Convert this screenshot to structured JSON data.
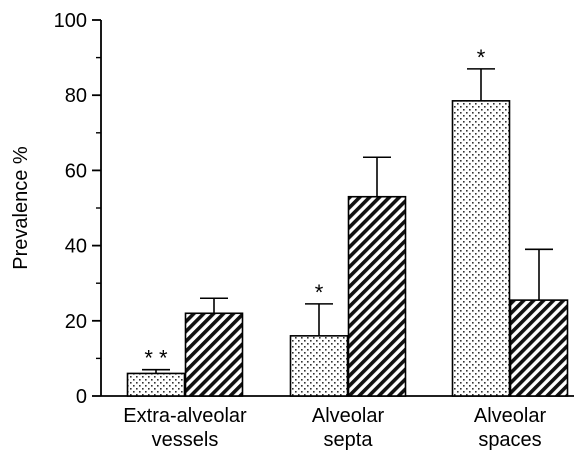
{
  "chart_data": {
    "type": "bar",
    "ylabel": "Prevalence %",
    "ylim": [
      0,
      100
    ],
    "yticks": [
      "0",
      "20",
      "40",
      "60",
      "80",
      "100"
    ],
    "categories": [
      {
        "line1": "Extra-alveolar",
        "line2": "vessels"
      },
      {
        "line1": "Alveolar",
        "line2": "septa"
      },
      {
        "line1": "Alveolar",
        "line2": "spaces"
      }
    ],
    "series": [
      {
        "pattern": "dotted",
        "values": [
          6,
          16,
          78.5
        ],
        "errors": [
          1,
          8.5,
          8.5
        ]
      },
      {
        "pattern": "hatched",
        "values": [
          22,
          53,
          25.5
        ],
        "errors": [
          4,
          10.5,
          13.5
        ]
      }
    ],
    "significance": [
      "* *",
      "*",
      "*"
    ],
    "grid": false,
    "legend": "none"
  }
}
